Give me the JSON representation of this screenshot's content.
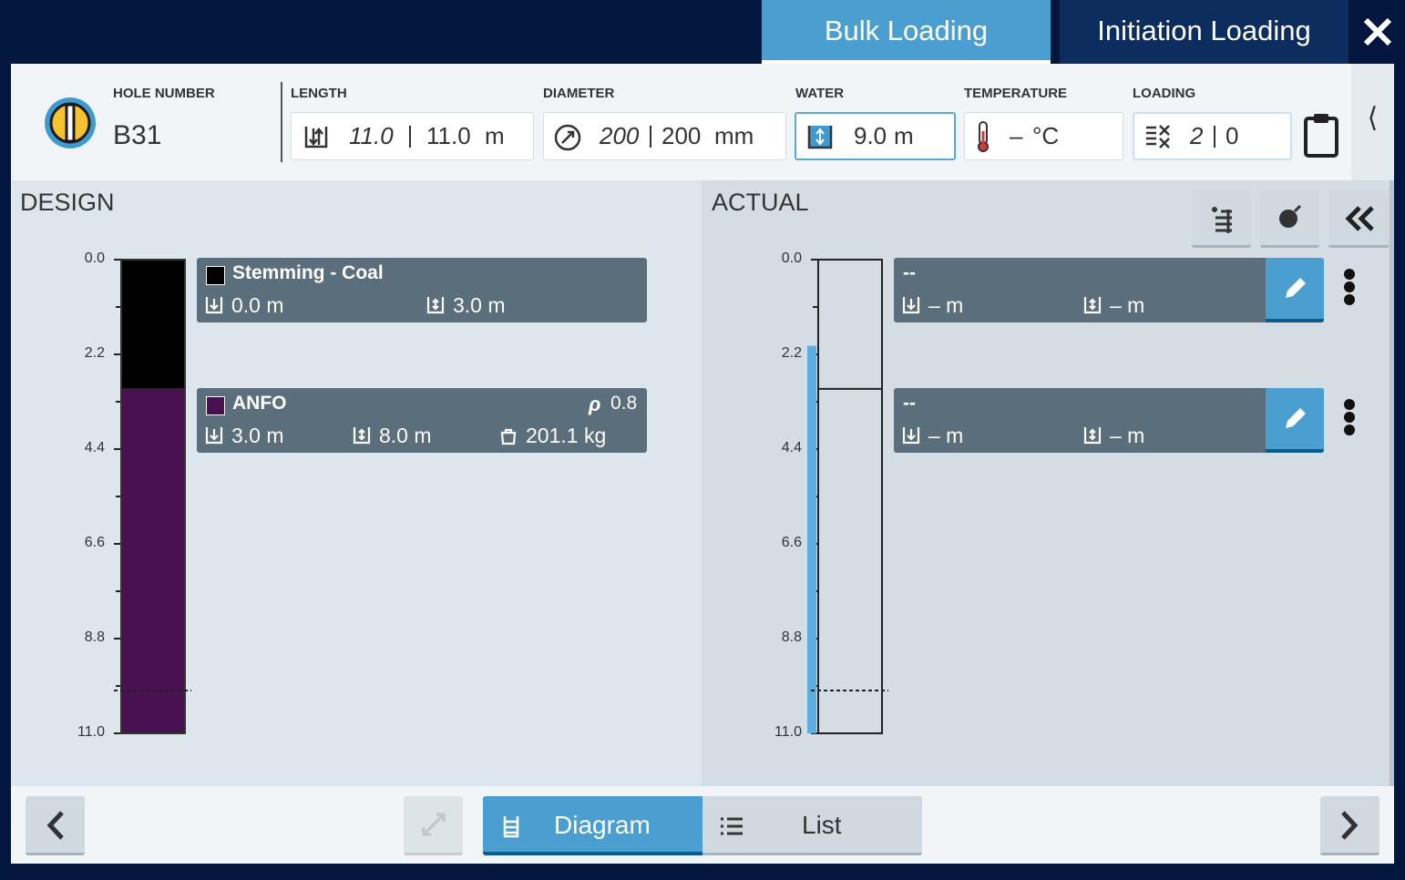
{
  "tabs": {
    "bulk": "Bulk Loading",
    "initiation": "Initiation Loading"
  },
  "header": {
    "hole_number": {
      "label": "HOLE NUMBER",
      "value": "B31"
    },
    "length": {
      "label": "LENGTH",
      "design": "11.0",
      "actual": "11.0",
      "unit": "m"
    },
    "diameter": {
      "label": "DIAMETER",
      "design": "200",
      "actual": "200",
      "unit": "mm"
    },
    "water": {
      "label": "WATER",
      "value": "9.0",
      "unit": "m"
    },
    "temperature": {
      "label": "TEMPERATURE",
      "value": "–",
      "unit": "°C"
    },
    "loading": {
      "label": "LOADING",
      "design": "2",
      "actual": "0"
    }
  },
  "design": {
    "title": "DESIGN",
    "depth_ticks": [
      "0.0",
      "2.2",
      "4.4",
      "6.6",
      "8.8",
      "11.0"
    ],
    "decks": [
      {
        "name": "Stemming - Coal",
        "color": "#000000",
        "from": "0.0 m",
        "to": "3.0 m"
      },
      {
        "name": "ANFO",
        "color": "#4a1150",
        "density_symbol": "ρ",
        "density": "0.8",
        "from": "3.0 m",
        "to": "8.0 m",
        "mass": "201.1 kg"
      }
    ]
  },
  "actual": {
    "title": "ACTUAL",
    "depth_ticks": [
      "0.0",
      "2.2",
      "4.4",
      "6.6",
      "8.8",
      "11.0"
    ],
    "decks": [
      {
        "name": "--",
        "from": "– m",
        "to": "– m"
      },
      {
        "name": "--",
        "from": "– m",
        "to": "– m"
      }
    ]
  },
  "footer": {
    "diagram": "Diagram",
    "list": "List"
  }
}
